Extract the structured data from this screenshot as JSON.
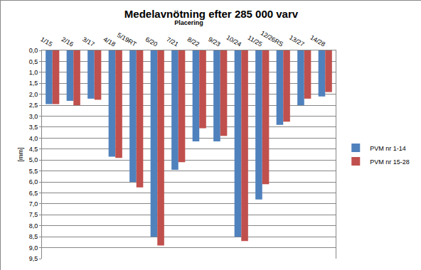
{
  "chart_data": {
    "type": "bar",
    "title": "Medelavnötning efter 285 000 varv",
    "x_label": "Placering",
    "y_label": "[mm]",
    "categories": [
      "1/15",
      "2/16",
      "3/17",
      "4/18",
      "5/19RT",
      "6/20",
      "7/21",
      "8/22",
      "9/23",
      "10/24",
      "11/25",
      "12/26RS",
      "13/27",
      "14/28"
    ],
    "series": [
      {
        "name": "PVM nr 1-14",
        "color": "#4f81bd",
        "values": [
          2.45,
          2.3,
          2.2,
          4.85,
          6.0,
          8.5,
          5.45,
          4.15,
          4.15,
          8.5,
          6.8,
          3.4,
          2.5,
          2.1
        ]
      },
      {
        "name": "PVM nr 15-28",
        "color": "#c0504d",
        "values": [
          2.45,
          2.5,
          2.25,
          4.9,
          6.25,
          8.9,
          5.1,
          3.55,
          3.9,
          8.7,
          6.1,
          3.25,
          2.2,
          1.9
        ]
      }
    ],
    "ylim": [
      0,
      9.5
    ],
    "yticks": [
      {
        "value": 0,
        "label": "0,0"
      },
      {
        "value": 0.5,
        "label": "0,5"
      },
      {
        "value": 1,
        "label": "1,0"
      },
      {
        "value": 1.5,
        "label": "1,5"
      },
      {
        "value": 2,
        "label": "2,0"
      },
      {
        "value": 2.5,
        "label": "2,5"
      },
      {
        "value": 3,
        "label": "3,0"
      },
      {
        "value": 3.5,
        "label": "3,5"
      },
      {
        "value": 4,
        "label": "4,0"
      },
      {
        "value": 4.5,
        "label": "4,5"
      },
      {
        "value": 5,
        "label": "5,0"
      },
      {
        "value": 5.5,
        "label": "5,5"
      },
      {
        "value": 6,
        "label": "6,0"
      },
      {
        "value": 6.5,
        "label": "6,5"
      },
      {
        "value": 7,
        "label": "7,0"
      },
      {
        "value": 7.5,
        "label": "7,5"
      },
      {
        "value": 8,
        "label": "8,0"
      },
      {
        "value": 8.5,
        "label": "8,5"
      },
      {
        "value": 9,
        "label": "9,0"
      },
      {
        "value": 9.5,
        "label": "9,5"
      }
    ],
    "grid": true,
    "legend": "right"
  }
}
